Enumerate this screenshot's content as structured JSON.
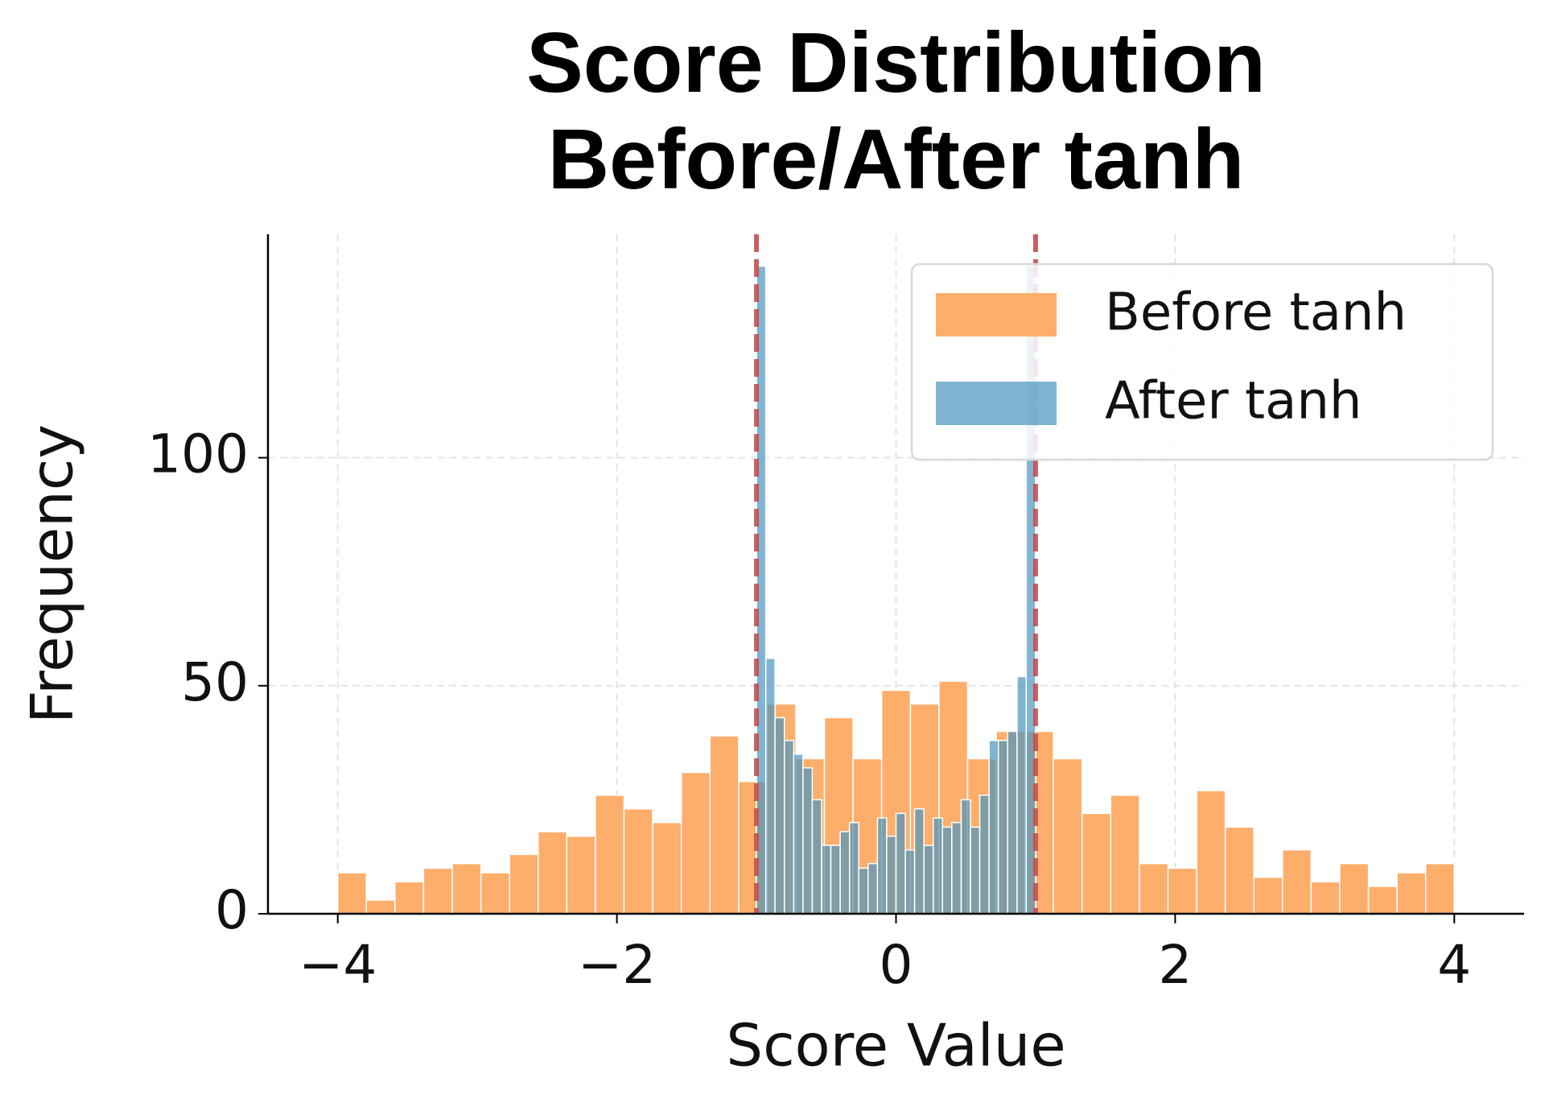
{
  "chart_data": {
    "type": "histogram",
    "title": "Score Distribution\nBefore/After tanh",
    "x_label": "Score Value",
    "y_label": "Frequency",
    "xlim": [
      -4.5,
      4.5
    ],
    "ylim": [
      0,
      149
    ],
    "xticks": [
      {
        "value": -4,
        "label": "−4"
      },
      {
        "value": -2,
        "label": "−2"
      },
      0,
      2,
      4
    ],
    "yticks": [
      0,
      50,
      100
    ],
    "grid": true,
    "legend": "upper right",
    "vlines": [
      -1,
      1
    ],
    "vline_color": "#c44e52",
    "series": [
      {
        "name": "Before tanh",
        "color": "#fdae6b",
        "bins": [
          -4,
          -3.795,
          -3.59,
          -3.385,
          -3.179,
          -2.974,
          -2.769,
          -2.564,
          -2.359,
          -2.154,
          -1.949,
          -1.744,
          -1.538,
          -1.333,
          -1.128,
          -0.923,
          -0.718,
          -0.513,
          -0.308,
          -0.103,
          0.103,
          0.308,
          0.513,
          0.718,
          0.923,
          1.128,
          1.333,
          1.538,
          1.744,
          1.949,
          2.154,
          2.359,
          2.564,
          2.769,
          2.974,
          3.179,
          3.385,
          3.59,
          3.795,
          4
        ],
        "values": [
          9,
          3,
          7,
          10,
          11,
          9,
          13,
          18,
          17,
          26,
          23,
          20,
          31,
          39,
          29,
          46,
          34,
          43,
          34,
          49,
          46,
          51,
          34,
          40,
          40,
          34,
          22,
          26,
          11,
          10,
          27,
          19,
          8,
          14,
          7,
          11,
          6,
          9,
          11
        ]
      },
      {
        "name": "After tanh",
        "color": "#4a94bd",
        "bins": [
          -1,
          -0.933,
          -0.867,
          -0.8,
          -0.733,
          -0.667,
          -0.6,
          -0.533,
          -0.467,
          -0.4,
          -0.333,
          -0.267,
          -0.2,
          -0.133,
          -0.067,
          0,
          0.067,
          0.133,
          0.2,
          0.267,
          0.333,
          0.4,
          0.467,
          0.533,
          0.6,
          0.667,
          0.733,
          0.8,
          0.867,
          0.933,
          1
        ],
        "values": [
          142,
          56,
          43,
          38,
          35,
          32,
          25,
          15,
          15,
          18,
          20,
          10,
          11,
          21,
          17,
          22,
          14,
          23,
          15,
          21,
          19,
          20,
          25,
          19,
          26,
          38,
          38,
          40,
          52,
          142
        ]
      }
    ]
  }
}
